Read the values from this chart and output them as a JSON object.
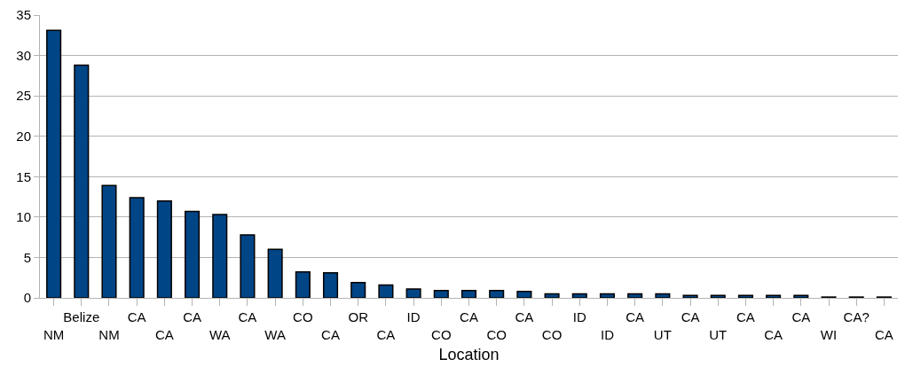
{
  "chart_data": {
    "type": "bar",
    "xlabel": "Location",
    "categories": [
      "NM",
      "Belize",
      "NM",
      "CA",
      "CA",
      "CA",
      "WA",
      "CA",
      "WA",
      "CO",
      "CA",
      "OR",
      "CA",
      "ID",
      "CO",
      "CA",
      "CO",
      "CA",
      "CO",
      "ID",
      "ID",
      "CA",
      "UT",
      "CA",
      "UT",
      "CA",
      "CA",
      "CA",
      "WI",
      "CA?",
      "CA"
    ],
    "values": [
      33.1,
      28.8,
      13.9,
      12.4,
      12.0,
      10.7,
      10.3,
      7.8,
      6.0,
      3.2,
      3.1,
      1.9,
      1.6,
      1.1,
      0.9,
      0.9,
      0.9,
      0.8,
      0.5,
      0.5,
      0.5,
      0.5,
      0.5,
      0.3,
      0.3,
      0.3,
      0.3,
      0.3,
      0.1,
      0.1,
      0.1
    ],
    "color": "#004586",
    "ylim": [
      0,
      35
    ],
    "yticks": [
      0,
      5,
      10,
      15,
      20,
      25,
      30,
      35
    ],
    "grid": "y"
  }
}
